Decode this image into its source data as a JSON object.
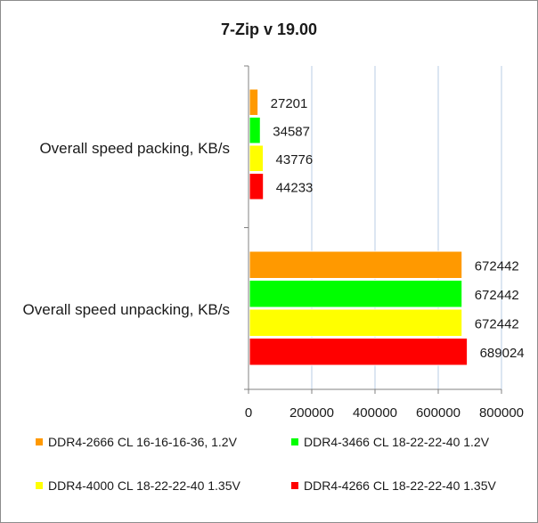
{
  "chart_data": {
    "type": "bar",
    "orientation": "horizontal",
    "title": "7-Zip v 19.00",
    "xlabel": "",
    "ylabel": "",
    "xlim": [
      0,
      800000
    ],
    "x_ticks": [
      "0",
      "200000",
      "400000",
      "600000",
      "800000"
    ],
    "grid": true,
    "legend_position": "bottom",
    "categories": [
      "Overall speed packing, KB/s",
      "Overall speed unpacking, KB/s"
    ],
    "series": [
      {
        "name": "DDR4-2666 CL 16-16-16-36, 1.2V",
        "color": "#ff9900",
        "values": [
          27201,
          672442
        ]
      },
      {
        "name": "DDR4-3466 CL 18-22-22-40 1.2V",
        "color": "#00ff00",
        "values": [
          34587,
          672442
        ]
      },
      {
        "name": "DDR4-4000 CL 18-22-22-40 1.35V",
        "color": "#ffff00",
        "values": [
          43776,
          672442
        ]
      },
      {
        "name": "DDR4-4266 CL 18-22-22-40 1.35V",
        "color": "#ff0000",
        "values": [
          44233,
          689024
        ]
      }
    ],
    "data_labels": [
      [
        "27201",
        "34587",
        "43776",
        "44233"
      ],
      [
        "672442",
        "672442",
        "672442",
        "689024"
      ]
    ]
  }
}
